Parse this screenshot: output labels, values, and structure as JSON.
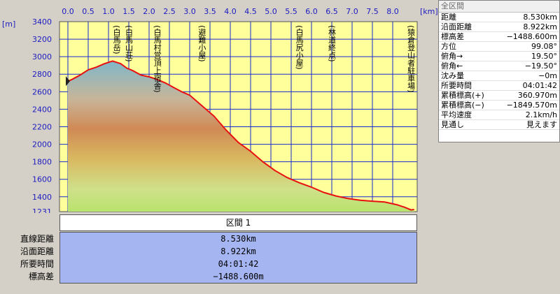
{
  "chart_data": {
    "type": "area",
    "xlabel": "",
    "ylabel": "",
    "x_unit_label": "[km]",
    "y_unit_label": "[m]",
    "xlim": [
      0,
      8.7
    ],
    "ylim": [
      1231,
      3400
    ],
    "x_ticks": [
      "0.0",
      "0.5",
      "1.0",
      "1.5",
      "2.0",
      "2.5",
      "3.0",
      "3.5",
      "4.0",
      "4.5",
      "5.0",
      "5.5",
      "6.0",
      "6.5",
      "7.0",
      "7.5",
      "8.0"
    ],
    "y_ticks": [
      "3400",
      "3200",
      "3000",
      "2800",
      "2600",
      "2400",
      "2200",
      "2000",
      "1800",
      "1600",
      "1400",
      "1231"
    ],
    "grid": true,
    "x": [
      0.0,
      0.1,
      0.3,
      0.5,
      0.7,
      0.9,
      1.1,
      1.3,
      1.45,
      1.6,
      1.8,
      2.0,
      2.2,
      2.4,
      2.6,
      2.8,
      3.0,
      3.3,
      3.6,
      3.9,
      4.2,
      4.5,
      4.8,
      5.1,
      5.4,
      5.7,
      6.0,
      6.3,
      6.6,
      6.9,
      7.2,
      7.5,
      7.8,
      8.1,
      8.3,
      8.45,
      8.53
    ],
    "y": [
      2720,
      2740,
      2790,
      2850,
      2880,
      2920,
      2950,
      2920,
      2870,
      2840,
      2790,
      2770,
      2740,
      2700,
      2650,
      2600,
      2560,
      2440,
      2320,
      2160,
      2020,
      1920,
      1800,
      1700,
      1620,
      1560,
      1510,
      1450,
      1410,
      1380,
      1360,
      1350,
      1340,
      1310,
      1280,
      1250,
      1255
    ],
    "annotations": [
      {
        "label": "(白馬岳)",
        "x": 1.2
      },
      {
        "label": "(白馬山荘)",
        "x": 1.5
      },
      {
        "label": "(白馬村営頂上宿舎)",
        "x": 2.2
      },
      {
        "label": "(避難小屋)",
        "x": 3.3
      },
      {
        "label": "(白馬尻小屋)",
        "x": 5.7
      },
      {
        "label": "(林道終点)",
        "x": 6.5
      },
      {
        "label": "(猿倉登山者駐車場)",
        "x": 8.45
      }
    ],
    "colors": {
      "line": "#e81010",
      "plot_bg": "#ffff9c",
      "grid": "#1a2ad0",
      "axis_text": "#1c1cc0"
    }
  },
  "panel": {
    "title": "全区間",
    "rows": [
      {
        "label": "距離",
        "value": "8.530km"
      },
      {
        "label": "沿面距離",
        "value": "8.922km"
      },
      {
        "label": "標高差",
        "value": "−1488.600m"
      },
      {
        "label": "方位",
        "value": "99.08°"
      },
      {
        "label": "俯角→",
        "value": "19.50°"
      },
      {
        "label": "俯角←",
        "value": "−19.50°"
      },
      {
        "label": "沈み量",
        "value": "−0m"
      },
      {
        "label": "所要時間",
        "value": "04:01:42"
      },
      {
        "label": "累積標高(+)",
        "value": "360.970m"
      },
      {
        "label": "累積標高(−)",
        "value": "−1849.570m"
      },
      {
        "label": "平均速度",
        "value": "2.1km/h"
      },
      {
        "label": "見通し",
        "value": "見えます"
      }
    ]
  },
  "section": {
    "label": "区間 1"
  },
  "stats": [
    {
      "label": "直線距離",
      "value": "8.530km"
    },
    {
      "label": "沿面距離",
      "value": "8.922km"
    },
    {
      "label": "所要時間",
      "value": "04:01:42"
    },
    {
      "label": "標高差",
      "value": "−1488.600m"
    }
  ]
}
